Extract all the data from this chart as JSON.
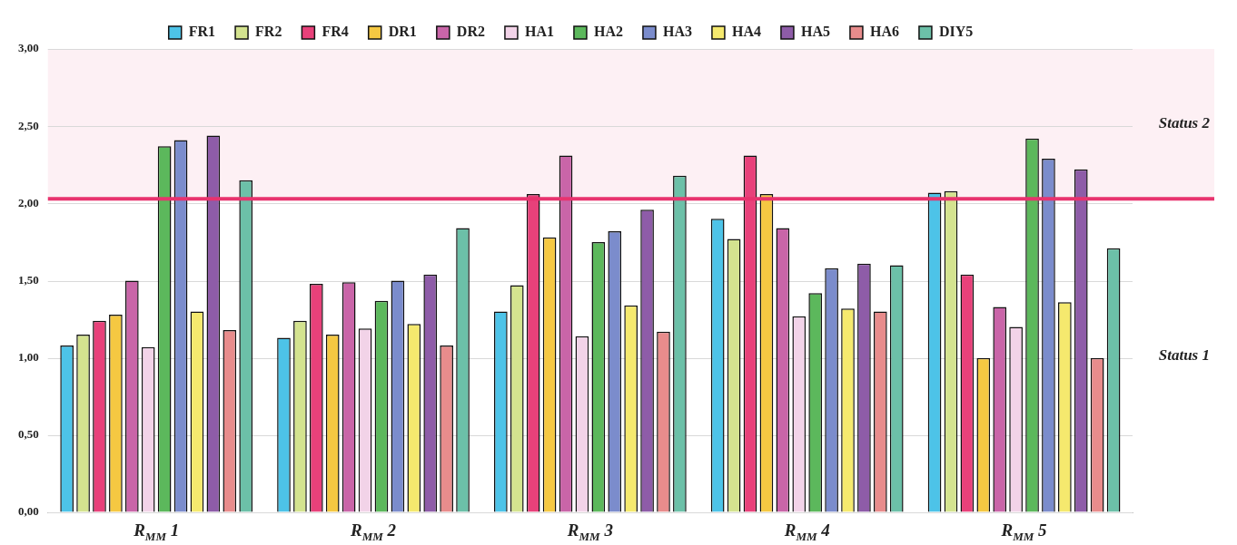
{
  "chart_data": {
    "type": "bar",
    "categories": [
      "R$_{MM}$ 1",
      "R$_{MM}$ 2",
      "R$_{MM}$ 3",
      "R$_{MM}$ 4",
      "R$_{MM}$ 5"
    ],
    "series": [
      {
        "name": "FR1",
        "color": "#4dc3e8",
        "values": [
          1.08,
          1.13,
          1.3,
          1.9,
          2.07
        ]
      },
      {
        "name": "FR2",
        "color": "#d4e38f",
        "values": [
          1.15,
          1.24,
          1.47,
          1.77,
          2.08
        ]
      },
      {
        "name": "FR4",
        "color": "#e8417a",
        "values": [
          1.24,
          1.48,
          2.06,
          2.31,
          1.54
        ]
      },
      {
        "name": "DR1",
        "color": "#f5c842",
        "values": [
          1.28,
          1.15,
          1.78,
          2.06,
          1.0
        ]
      },
      {
        "name": "DR2",
        "color": "#c965a8",
        "values": [
          1.5,
          1.49,
          2.31,
          1.84,
          1.33
        ]
      },
      {
        "name": "HA1",
        "color": "#f2d3e8",
        "values": [
          1.07,
          1.19,
          1.14,
          1.27,
          1.2
        ]
      },
      {
        "name": "HA2",
        "color": "#5cb85c",
        "values": [
          2.37,
          1.37,
          1.75,
          1.42,
          2.42
        ]
      },
      {
        "name": "HA3",
        "color": "#7b8ccc",
        "values": [
          2.41,
          1.5,
          1.82,
          1.58,
          2.29
        ]
      },
      {
        "name": "HA4",
        "color": "#f5e96e",
        "values": [
          1.3,
          1.22,
          1.34,
          1.32,
          1.36
        ]
      },
      {
        "name": "HA5",
        "color": "#8e5ca8",
        "values": [
          2.44,
          1.54,
          1.96,
          1.61,
          2.22
        ]
      },
      {
        "name": "HA6",
        "color": "#e88c8c",
        "values": [
          1.18,
          1.08,
          1.17,
          1.3,
          1.0
        ]
      },
      {
        "name": "DIY5",
        "color": "#6cc0a8",
        "values": [
          2.15,
          1.84,
          2.18,
          1.6,
          1.71
        ]
      }
    ],
    "ylim": [
      0,
      3
    ],
    "yticks": [
      {
        "value": 0,
        "label": "0,00"
      },
      {
        "value": 0.5,
        "label": "0,50"
      },
      {
        "value": 1,
        "label": "1,00"
      },
      {
        "value": 1.5,
        "label": "1,50"
      },
      {
        "value": 2,
        "label": "2,00"
      },
      {
        "value": 2.5,
        "label": "2,50"
      },
      {
        "value": 3,
        "label": "3,00"
      }
    ],
    "grid": "y",
    "legend": "top",
    "ref_lines": [
      {
        "axis": "y",
        "value": 2.03,
        "color": "#e8336e"
      }
    ],
    "bands": [
      {
        "axis": "y",
        "from": 2.03,
        "to": 3,
        "label": "Status 2",
        "color": "#fdf0f4"
      },
      {
        "axis": "y",
        "from": 0,
        "to": 2.03,
        "label": "Status 1",
        "color": "#ffffff"
      }
    ]
  }
}
